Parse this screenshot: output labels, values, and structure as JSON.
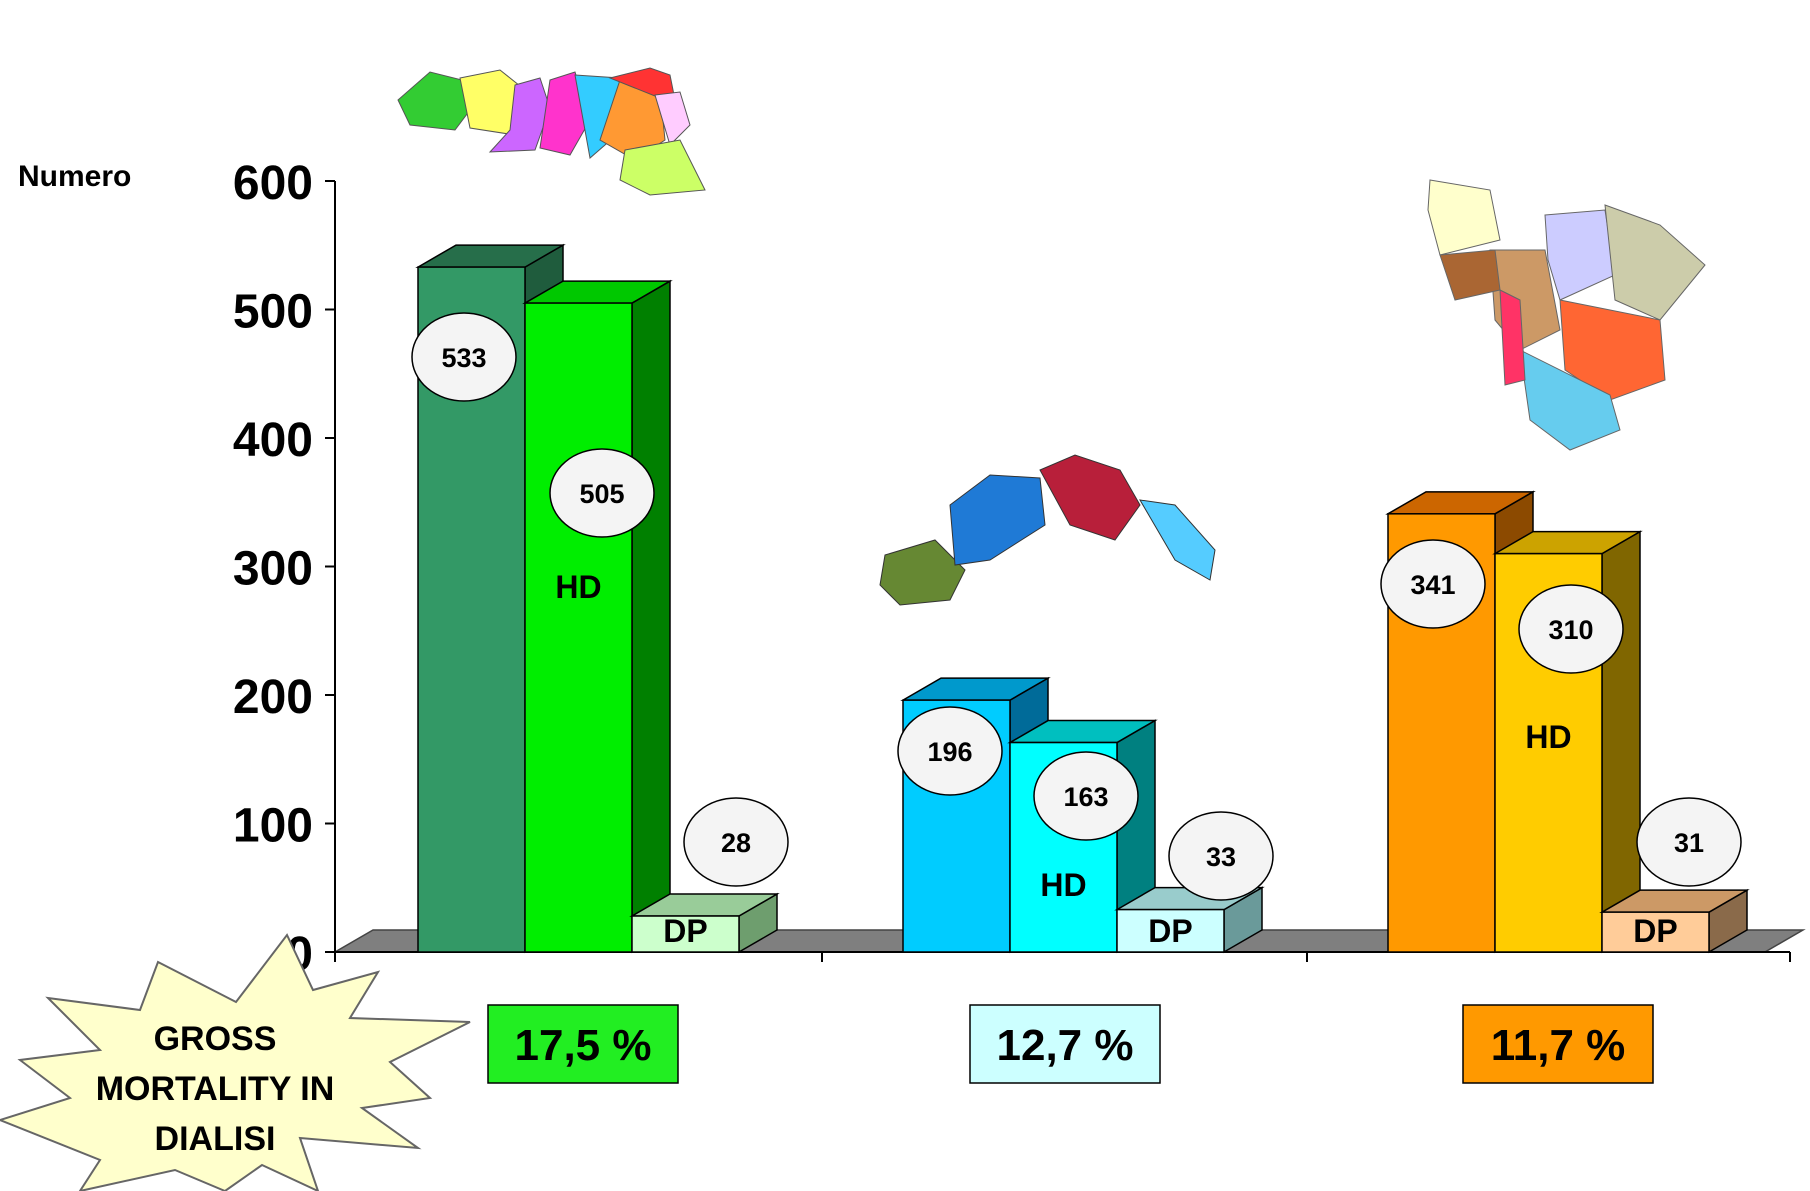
{
  "chart_data": {
    "type": "bar",
    "ylabel": "Numero",
    "ylim": [
      0,
      600
    ],
    "yticks": [
      "0",
      "100",
      "200",
      "300",
      "400",
      "500",
      "600"
    ],
    "groups": [
      {
        "bars": [
          {
            "value": 533,
            "label": "533",
            "tag": "",
            "colors": {
              "front": "#339966",
              "side": "#1f5c3d",
              "top": "#266e4a"
            }
          },
          {
            "value": 505,
            "label": "505",
            "tag": "HD",
            "colors": {
              "front": "#00ee00",
              "side": "#008000",
              "top": "#00c800"
            }
          },
          {
            "value": 28,
            "label": "28",
            "tag": "DP",
            "colors": {
              "front": "#ccffcc",
              "side": "#6e9e6e",
              "top": "#99cc99"
            }
          }
        ],
        "mortality": "17,5 %",
        "mortality_color": "#22ee22"
      },
      {
        "bars": [
          {
            "value": 196,
            "label": "196",
            "tag": "",
            "colors": {
              "front": "#00ccff",
              "side": "#006b99",
              "top": "#0099cc"
            }
          },
          {
            "value": 163,
            "label": "163",
            "tag": "HD",
            "colors": {
              "front": "#00ffff",
              "side": "#008080",
              "top": "#00bfbf"
            }
          },
          {
            "value": 33,
            "label": "33",
            "tag": "DP",
            "colors": {
              "front": "#ccffff",
              "side": "#6a9a9a",
              "top": "#99cccc"
            }
          }
        ],
        "mortality": "12,7 %",
        "mortality_color": "#ccffff"
      },
      {
        "bars": [
          {
            "value": 341,
            "label": "341",
            "tag": "",
            "colors": {
              "front": "#ff9900",
              "side": "#8c4a00",
              "top": "#cc6600"
            }
          },
          {
            "value": 310,
            "label": "310",
            "tag": "HD",
            "colors": {
              "front": "#ffcc00",
              "side": "#806600",
              "top": "#cca300"
            }
          },
          {
            "value": 31,
            "label": "31",
            "tag": "DP",
            "colors": {
              "front": "#ffcc99",
              "side": "#8a6a4a",
              "top": "#cc9966"
            }
          }
        ],
        "mortality": "11,7 %",
        "mortality_color": "#ff9900"
      }
    ],
    "grid": false,
    "legend": "none"
  },
  "callout": {
    "lines": [
      "GROSS",
      "MORTALITY IN",
      "DIALISI"
    ],
    "fill": "#ffffcc"
  },
  "maps": [
    {
      "name": "emilia-romagna-map-icon",
      "colors": [
        "#33cc33",
        "#ffff66",
        "#cc66ff",
        "#ff33cc",
        "#33ccff",
        "#ff9933",
        "#ff3333",
        "#ffccff",
        "#ccff66"
      ]
    },
    {
      "name": "liguria-map-icon",
      "colors": [
        "#668833",
        "#1f7ad6",
        "#b81f3a",
        "#55ccff"
      ]
    },
    {
      "name": "toscana-map-icon",
      "colors": [
        "#ffffcc",
        "#cc9966",
        "#ccccff",
        "#ccccaa",
        "#ff6633",
        "#66ccee",
        "#ff3366",
        "#aa6633"
      ]
    }
  ]
}
